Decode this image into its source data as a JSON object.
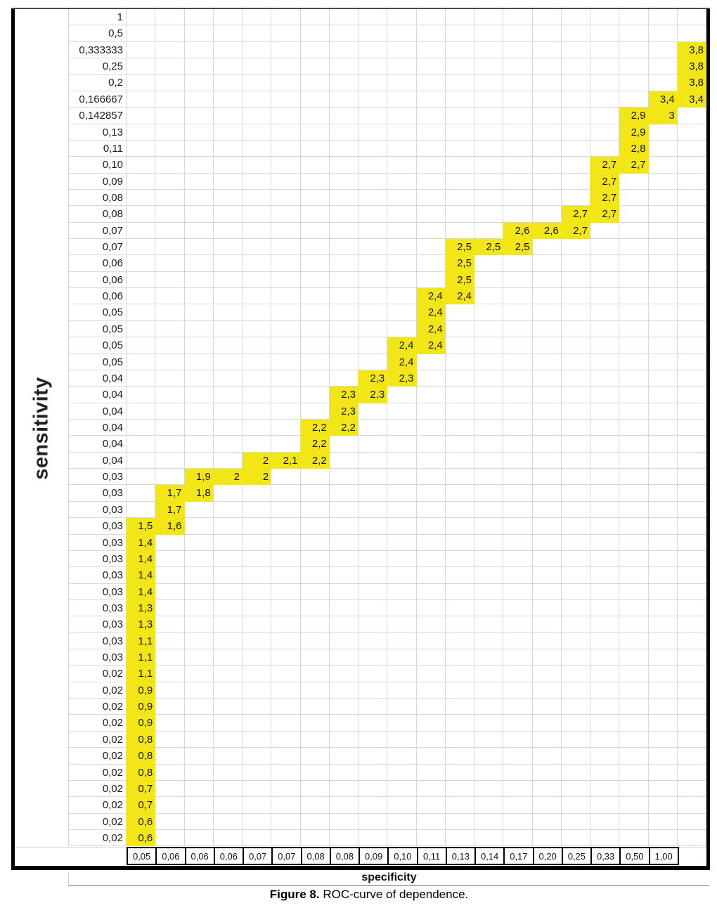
{
  "figure": {
    "caption_prefix": "Figure 8.",
    "caption_text": " ROC-curve of dependence."
  },
  "colors": {
    "highlight_yellow": "#f3e617",
    "gridline": "#d6d8da",
    "frame_black": "#000000"
  },
  "chart_data": {
    "type": "table",
    "title": "Figure 8. ROC-curve of dependence.",
    "xlabel": "specificity",
    "ylabel": "sensitivity",
    "legend": "none",
    "grid": "on",
    "num_columns": 20,
    "x_tick_labels": [
      "0,05",
      "0,06",
      "0,06",
      "0,06",
      "0,07",
      "0,07",
      "0,08",
      "0,08",
      "0,09",
      "0,10",
      "0,11",
      "0,13",
      "0,14",
      "0,17",
      "0,20",
      "0,25",
      "0,33",
      "0,50",
      "1,00",
      ""
    ],
    "rows": [
      {
        "label": "1",
        "cells": []
      },
      {
        "label": "0,5",
        "cells": []
      },
      {
        "label": "0,333333",
        "cells": [
          {
            "c": 19,
            "v": "3,8"
          }
        ]
      },
      {
        "label": "0,25",
        "cells": [
          {
            "c": 19,
            "v": "3,8"
          }
        ]
      },
      {
        "label": "0,2",
        "cells": [
          {
            "c": 19,
            "v": "3,8"
          }
        ]
      },
      {
        "label": "0,166667",
        "cells": [
          {
            "c": 18,
            "v": "3,4"
          },
          {
            "c": 19,
            "v": "3,4"
          }
        ]
      },
      {
        "label": "0,142857",
        "cells": [
          {
            "c": 17,
            "v": "2,9"
          },
          {
            "c": 18,
            "v": "3"
          }
        ]
      },
      {
        "label": "0,13",
        "cells": [
          {
            "c": 17,
            "v": "2,9"
          }
        ]
      },
      {
        "label": "0,11",
        "cells": [
          {
            "c": 17,
            "v": "2,8"
          }
        ]
      },
      {
        "label": "0,10",
        "cells": [
          {
            "c": 16,
            "v": "2,7"
          },
          {
            "c": 17,
            "v": "2,7"
          }
        ]
      },
      {
        "label": "0,09",
        "cells": [
          {
            "c": 16,
            "v": "2,7"
          }
        ]
      },
      {
        "label": "0,08",
        "cells": [
          {
            "c": 16,
            "v": "2,7"
          }
        ]
      },
      {
        "label": "0,08",
        "cells": [
          {
            "c": 15,
            "v": "2,7"
          },
          {
            "c": 16,
            "v": "2,7"
          }
        ]
      },
      {
        "label": "0,07",
        "cells": [
          {
            "c": 13,
            "v": "2,6"
          },
          {
            "c": 14,
            "v": "2,6"
          },
          {
            "c": 15,
            "v": "2,7"
          }
        ]
      },
      {
        "label": "0,07",
        "cells": [
          {
            "c": 11,
            "v": "2,5"
          },
          {
            "c": 12,
            "v": "2,5"
          },
          {
            "c": 13,
            "v": "2,5"
          }
        ]
      },
      {
        "label": "0,06",
        "cells": [
          {
            "c": 11,
            "v": "2,5"
          }
        ]
      },
      {
        "label": "0,06",
        "cells": [
          {
            "c": 11,
            "v": "2,5"
          }
        ]
      },
      {
        "label": "0,06",
        "cells": [
          {
            "c": 10,
            "v": "2,4"
          },
          {
            "c": 11,
            "v": "2,4"
          }
        ]
      },
      {
        "label": "0,05",
        "cells": [
          {
            "c": 10,
            "v": "2,4"
          }
        ]
      },
      {
        "label": "0,05",
        "cells": [
          {
            "c": 10,
            "v": "2,4"
          }
        ]
      },
      {
        "label": "0,05",
        "cells": [
          {
            "c": 9,
            "v": "2,4"
          },
          {
            "c": 10,
            "v": "2,4"
          }
        ]
      },
      {
        "label": "0,05",
        "cells": [
          {
            "c": 9,
            "v": "2,4"
          }
        ]
      },
      {
        "label": "0,04",
        "cells": [
          {
            "c": 8,
            "v": "2,3"
          },
          {
            "c": 9,
            "v": "2,3"
          }
        ]
      },
      {
        "label": "0,04",
        "cells": [
          {
            "c": 7,
            "v": "2,3"
          },
          {
            "c": 8,
            "v": "2,3"
          }
        ]
      },
      {
        "label": "0,04",
        "cells": [
          {
            "c": 7,
            "v": "2,3"
          }
        ]
      },
      {
        "label": "0,04",
        "cells": [
          {
            "c": 6,
            "v": "2,2"
          },
          {
            "c": 7,
            "v": "2,2"
          }
        ]
      },
      {
        "label": "0,04",
        "cells": [
          {
            "c": 6,
            "v": "2,2"
          }
        ]
      },
      {
        "label": "0,04",
        "cells": [
          {
            "c": 4,
            "v": "2"
          },
          {
            "c": 5,
            "v": "2,1"
          },
          {
            "c": 6,
            "v": "2,2"
          }
        ]
      },
      {
        "label": "0,03",
        "cells": [
          {
            "c": 2,
            "v": "1,9"
          },
          {
            "c": 3,
            "v": "2"
          },
          {
            "c": 4,
            "v": "2"
          }
        ]
      },
      {
        "label": "0,03",
        "cells": [
          {
            "c": 1,
            "v": "1,7"
          },
          {
            "c": 2,
            "v": "1,8"
          }
        ]
      },
      {
        "label": "0,03",
        "cells": [
          {
            "c": 1,
            "v": "1,7"
          }
        ]
      },
      {
        "label": "0,03",
        "cells": [
          {
            "c": 0,
            "v": "1,5"
          },
          {
            "c": 1,
            "v": "1,6"
          }
        ]
      },
      {
        "label": "0,03",
        "cells": [
          {
            "c": 0,
            "v": "1,4"
          }
        ]
      },
      {
        "label": "0,03",
        "cells": [
          {
            "c": 0,
            "v": "1,4"
          }
        ]
      },
      {
        "label": "0,03",
        "cells": [
          {
            "c": 0,
            "v": "1,4"
          }
        ]
      },
      {
        "label": "0,03",
        "cells": [
          {
            "c": 0,
            "v": "1,4"
          }
        ]
      },
      {
        "label": "0,03",
        "cells": [
          {
            "c": 0,
            "v": "1,3"
          }
        ]
      },
      {
        "label": "0,03",
        "cells": [
          {
            "c": 0,
            "v": "1,3"
          }
        ]
      },
      {
        "label": "0,03",
        "cells": [
          {
            "c": 0,
            "v": "1,1"
          }
        ]
      },
      {
        "label": "0,03",
        "cells": [
          {
            "c": 0,
            "v": "1,1"
          }
        ]
      },
      {
        "label": "0,02",
        "cells": [
          {
            "c": 0,
            "v": "1,1"
          }
        ]
      },
      {
        "label": "0,02",
        "cells": [
          {
            "c": 0,
            "v": "0,9"
          }
        ]
      },
      {
        "label": "0,02",
        "cells": [
          {
            "c": 0,
            "v": "0,9"
          }
        ]
      },
      {
        "label": "0,02",
        "cells": [
          {
            "c": 0,
            "v": "0,9"
          }
        ]
      },
      {
        "label": "0,02",
        "cells": [
          {
            "c": 0,
            "v": "0,8"
          }
        ]
      },
      {
        "label": "0,02",
        "cells": [
          {
            "c": 0,
            "v": "0,8"
          }
        ]
      },
      {
        "label": "0,02",
        "cells": [
          {
            "c": 0,
            "v": "0,8"
          }
        ]
      },
      {
        "label": "0,02",
        "cells": [
          {
            "c": 0,
            "v": "0,7"
          }
        ]
      },
      {
        "label": "0,02",
        "cells": [
          {
            "c": 0,
            "v": "0,7"
          }
        ]
      },
      {
        "label": "0,02",
        "cells": [
          {
            "c": 0,
            "v": "0,6"
          }
        ]
      },
      {
        "label": "0,02",
        "cells": [
          {
            "c": 0,
            "v": "0,6"
          }
        ]
      }
    ]
  }
}
